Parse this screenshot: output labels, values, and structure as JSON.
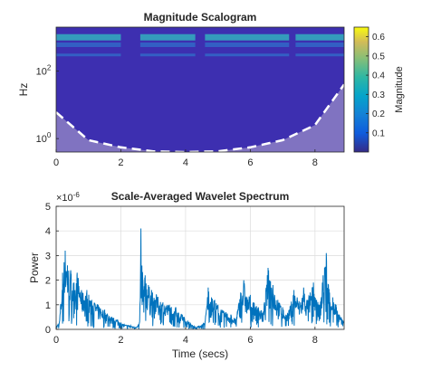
{
  "chart_data": [
    {
      "type": "heatmap",
      "title": "Magnitude Scalogram",
      "xlabel": "",
      "ylabel": "Hz",
      "xlim": [
        0,
        8.9
      ],
      "xticks": [
        "0",
        "2",
        "4",
        "6",
        "8"
      ],
      "xtick_values": [
        0,
        2,
        4,
        6,
        8
      ],
      "yscale": "log",
      "ylim": [
        0.4,
        2000
      ],
      "yticks": [
        {
          "base": "10",
          "exp": "0",
          "value": 1
        },
        {
          "base": "10",
          "exp": "2",
          "value": 100
        }
      ],
      "high_energy_bands_hz": [
        1000,
        600,
        300
      ],
      "active_segments_secs": [
        [
          0,
          2.0
        ],
        [
          2.6,
          4.3
        ],
        [
          4.6,
          7.2
        ],
        [
          7.4,
          8.9
        ]
      ],
      "cone_of_influence_hz_at_x": [
        [
          0,
          6
        ],
        [
          1,
          0.9
        ],
        [
          2,
          0.55
        ],
        [
          3,
          0.42
        ],
        [
          4,
          0.4
        ],
        [
          5,
          0.42
        ],
        [
          6,
          0.55
        ],
        [
          7,
          0.9
        ],
        [
          8,
          2.5
        ],
        [
          8.9,
          40
        ]
      ],
      "colorbar": {
        "label": "Magnitude",
        "ticks": [
          "0.1",
          "0.2",
          "0.3",
          "0.4",
          "0.5",
          "0.6"
        ],
        "tick_values": [
          0.1,
          0.2,
          0.3,
          0.4,
          0.5,
          0.6
        ],
        "range": [
          0,
          0.65
        ],
        "colormap": "parula"
      },
      "colors": {
        "background": "#3d2fb0",
        "band": "#31c0c0",
        "coi_fill": "#8c7fc4",
        "coi_line": "#ffffff"
      }
    },
    {
      "type": "line",
      "title": "Scale-Averaged Wavelet Spectrum",
      "xlabel": "Time (secs)",
      "ylabel": "Power",
      "y_exponent_label": {
        "base": "×10",
        "exp": "-6"
      },
      "xlim": [
        0,
        8.9
      ],
      "ylim": [
        0,
        5
      ],
      "xticks": [
        "0",
        "2",
        "4",
        "6",
        "8"
      ],
      "xtick_values": [
        0,
        2,
        4,
        6,
        8
      ],
      "yticks": [
        "0",
        "1",
        "2",
        "3",
        "4",
        "5"
      ],
      "ytick_values": [
        0,
        1,
        2,
        3,
        4,
        5
      ],
      "grid": true,
      "line_color": "#0072bd",
      "series": [
        {
          "x": [
            0,
            0.1,
            0.2,
            0.28,
            0.35,
            0.45,
            0.55,
            0.65,
            0.8,
            0.95,
            1.1,
            1.3,
            1.5,
            1.7,
            1.9,
            2.1,
            2.3,
            2.5,
            2.58,
            2.62,
            2.68,
            2.75,
            2.85,
            2.95,
            3.1,
            3.3,
            3.5,
            3.7,
            3.9,
            4.1,
            4.3,
            4.45,
            4.6,
            4.7,
            4.8,
            4.9,
            5.0,
            5.1,
            5.25,
            5.4,
            5.55,
            5.7,
            5.8,
            5.9,
            6.0,
            6.1,
            6.25,
            6.4,
            6.55,
            6.7,
            6.85,
            7.0,
            7.1,
            7.2,
            7.35,
            7.45,
            7.55,
            7.65,
            7.75,
            7.85,
            7.95,
            8.05,
            8.15,
            8.25,
            8.35,
            8.45,
            8.55,
            8.65,
            8.75,
            8.9
          ],
          "y": [
            0.1,
            0.3,
            2.3,
            3.2,
            2.6,
            2.4,
            1.9,
            2.3,
            1.5,
            1.6,
            1.2,
            1.0,
            0.8,
            0.5,
            0.4,
            0.2,
            0.15,
            0.1,
            0.3,
            4.1,
            2.0,
            2.2,
            1.8,
            1.6,
            1.4,
            1.1,
            1.0,
            0.9,
            0.6,
            0.3,
            0.1,
            0.15,
            0.3,
            1.7,
            1.3,
            1.2,
            1.0,
            0.8,
            0.7,
            0.6,
            0.4,
            1.5,
            2.0,
            1.3,
            1.4,
            1.1,
            0.9,
            0.7,
            2.5,
            1.8,
            1.2,
            0.9,
            0.6,
            0.8,
            1.6,
            1.3,
            1.1,
            1.7,
            1.2,
            1.5,
            1.9,
            1.2,
            1.0,
            2.2,
            3.1,
            1.5,
            1.3,
            1.0,
            0.6,
            0.3
          ]
        }
      ]
    }
  ]
}
